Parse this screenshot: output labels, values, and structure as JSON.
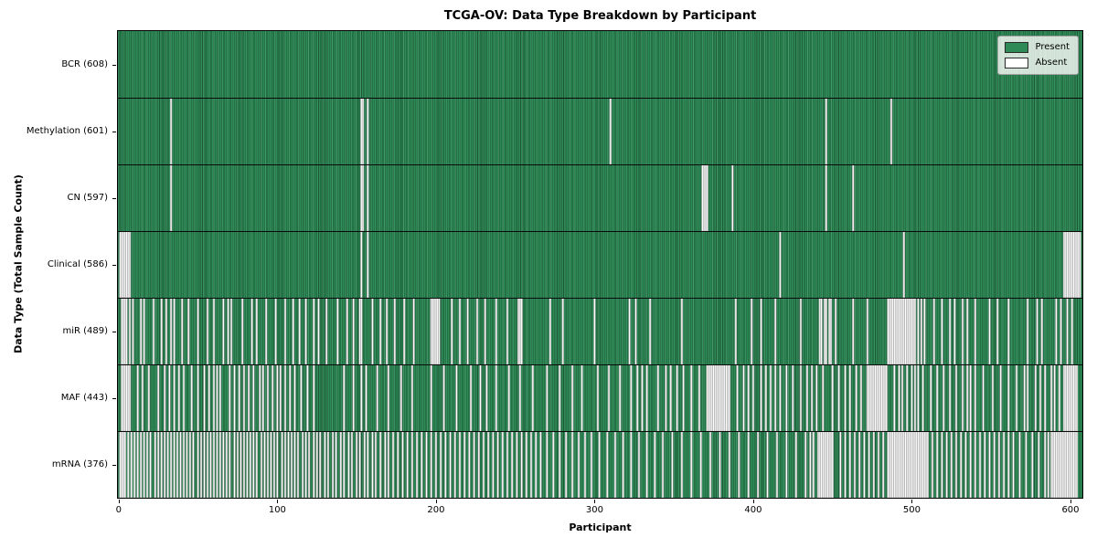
{
  "title": "TCGA-OV: Data Type Breakdown by Participant",
  "x_axis": {
    "label": "Participant",
    "ticks": [
      0,
      100,
      200,
      300,
      400,
      500,
      600
    ]
  },
  "y_axis": {
    "label": "Data Type (Total Sample Count)"
  },
  "legend": {
    "items": [
      {
        "label": "Present",
        "color": "#2e8b57"
      },
      {
        "label": "Absent",
        "color": "#ffffff"
      }
    ]
  },
  "colors": {
    "present": "#2e8b57",
    "present_edge": "#1c5736",
    "absent": "#ffffff",
    "absent_edge": "#a0a0a0",
    "separator": "#0a0a0a"
  },
  "chart_data": {
    "type": "heatmap",
    "title": "TCGA-OV: Data Type Breakdown by Participant",
    "xlabel": "Participant",
    "ylabel": "Data Type (Total Sample Count)",
    "n_participants": 608,
    "x_ticks": [
      0,
      100,
      200,
      300,
      400,
      500,
      600
    ],
    "legend_entries": [
      "Present",
      "Absent"
    ],
    "legend_position": "upper right",
    "rows": [
      {
        "label": "BCR (608)",
        "present_count": 608,
        "absent_participants": []
      },
      {
        "label": "Methylation (601)",
        "present_count": 601,
        "absent_participants": [
          33,
          153,
          154,
          157,
          310,
          446,
          487
        ]
      },
      {
        "label": "CN (597)",
        "present_count": 597,
        "absent_participants": [
          33,
          153,
          154,
          157,
          368,
          369,
          370,
          371,
          387,
          446,
          463
        ]
      },
      {
        "label": "Clinical (586)",
        "present_count": 586,
        "absent_participants": [
          1,
          2,
          3,
          4,
          5,
          6,
          7,
          153,
          157,
          417,
          495,
          596,
          597,
          598,
          599,
          600,
          601,
          602,
          603,
          604,
          605,
          606
        ]
      },
      {
        "label": "miR (489)",
        "present_count": 489,
        "absent_participants": [
          2,
          3,
          4,
          5,
          7,
          9,
          14,
          16,
          22,
          27,
          30,
          33,
          35,
          40,
          44,
          50,
          56,
          60,
          66,
          69,
          71,
          78,
          84,
          87,
          93,
          99,
          105,
          110,
          114,
          118,
          123,
          126,
          131,
          138,
          144,
          148,
          152,
          153,
          160,
          165,
          169,
          174,
          180,
          186,
          197,
          198,
          199,
          200,
          201,
          202,
          210,
          215,
          220,
          226,
          231,
          238,
          245,
          252,
          253,
          254,
          272,
          280,
          300,
          322,
          326,
          335,
          355,
          389,
          399,
          405,
          414,
          430,
          442,
          443,
          445,
          446,
          448,
          449,
          452,
          463,
          472,
          485,
          486,
          487,
          488,
          489,
          490,
          491,
          492,
          493,
          494,
          495,
          496,
          497,
          498,
          499,
          500,
          501,
          502,
          504,
          506,
          508,
          514,
          519,
          524,
          527,
          532,
          535,
          540,
          549,
          554,
          561,
          573,
          579,
          582,
          591,
          594,
          598,
          601
        ]
      },
      {
        "label": "MAF (443)",
        "present_count": 443,
        "absent_participants": [
          2,
          3,
          4,
          5,
          6,
          7,
          12,
          15,
          19,
          25,
          29,
          32,
          35,
          38,
          41,
          46,
          50,
          54,
          57,
          60,
          62,
          64,
          70,
          73,
          76,
          79,
          82,
          85,
          89,
          91,
          94,
          97,
          100,
          102,
          105,
          108,
          111,
          115,
          119,
          123,
          142,
          148,
          153,
          156,
          163,
          170,
          178,
          185,
          197,
          205,
          213,
          222,
          228,
          232,
          238,
          246,
          253,
          261,
          270,
          278,
          286,
          292,
          302,
          309,
          316,
          323,
          327,
          330,
          333,
          340,
          345,
          348,
          352,
          356,
          361,
          366,
          371,
          372,
          373,
          374,
          375,
          376,
          377,
          378,
          379,
          380,
          381,
          382,
          383,
          384,
          385,
          390,
          394,
          397,
          400,
          405,
          408,
          411,
          414,
          417,
          421,
          425,
          430,
          434,
          437,
          440,
          444,
          450,
          454,
          458,
          461,
          465,
          468,
          472,
          473,
          474,
          475,
          476,
          477,
          478,
          479,
          480,
          481,
          482,
          483,
          484,
          489,
          492,
          494,
          497,
          500,
          502,
          504,
          507,
          512,
          516,
          520,
          524,
          528,
          532,
          535,
          537,
          540,
          545,
          551,
          556,
          561,
          566,
          571,
          573,
          578,
          581,
          584,
          588,
          590,
          593,
          596,
          597,
          598,
          599,
          600,
          601,
          602,
          603,
          604
        ]
      },
      {
        "label": "mRNA (376)",
        "present_count": 376,
        "absent_participants": [
          1,
          2,
          3,
          4,
          6,
          8,
          10,
          12,
          14,
          16,
          18,
          20,
          23,
          25,
          27,
          29,
          31,
          33,
          35,
          37,
          39,
          41,
          43,
          45,
          47,
          50,
          52,
          54,
          56,
          58,
          60,
          62,
          64,
          66,
          68,
          70,
          73,
          75,
          77,
          79,
          81,
          83,
          85,
          87,
          90,
          92,
          94,
          96,
          98,
          100,
          103,
          105,
          107,
          109,
          111,
          113,
          116,
          118,
          120,
          123,
          125,
          127,
          130,
          132,
          135,
          137,
          140,
          142,
          145,
          147,
          150,
          152,
          155,
          157,
          160,
          162,
          165,
          168,
          170,
          173,
          176,
          179,
          182,
          185,
          188,
          191,
          194,
          197,
          200,
          203,
          206,
          209,
          212,
          215,
          218,
          221,
          224,
          227,
          230,
          233,
          236,
          239,
          242,
          245,
          248,
          251,
          254,
          257,
          260,
          263,
          266,
          270,
          274,
          278,
          282,
          286,
          290,
          294,
          298,
          303,
          308,
          313,
          318,
          323,
          328,
          333,
          338,
          343,
          349,
          355,
          361,
          367,
          373,
          379,
          385,
          391,
          397,
          403,
          409,
          415,
          421,
          427,
          433,
          436,
          438,
          441,
          442,
          443,
          444,
          445,
          446,
          447,
          448,
          449,
          450,
          455,
          458,
          461,
          464,
          467,
          470,
          473,
          476,
          479,
          482,
          485,
          486,
          487,
          488,
          489,
          490,
          491,
          492,
          493,
          494,
          495,
          496,
          497,
          498,
          499,
          500,
          501,
          502,
          503,
          504,
          505,
          506,
          507,
          508,
          509,
          510,
          513,
          516,
          519,
          522,
          525,
          528,
          531,
          534,
          537,
          540,
          543,
          546,
          549,
          552,
          555,
          558,
          561,
          564,
          568,
          572,
          576,
          580,
          584,
          586,
          588,
          589,
          590,
          591,
          592,
          593,
          594,
          595,
          596,
          597,
          598,
          599,
          600,
          601,
          602,
          603,
          604
        ]
      }
    ]
  }
}
